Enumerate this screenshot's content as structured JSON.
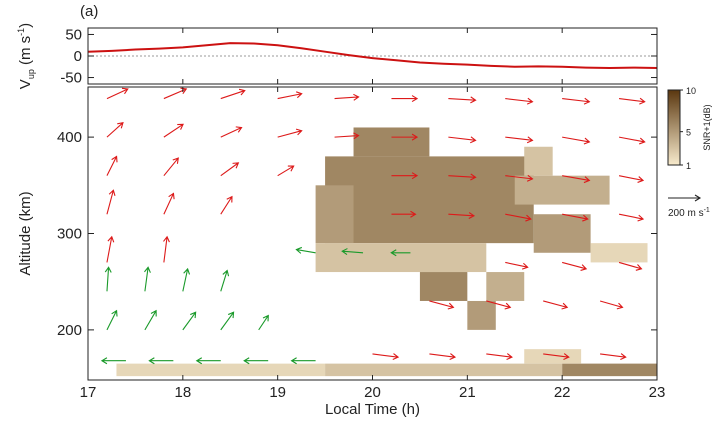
{
  "chart_data": [
    {
      "type": "line",
      "panel_label": "(a)",
      "ylabel_parts": [
        "V",
        "up",
        " (m s",
        "-1",
        ")"
      ],
      "xlim": [
        17,
        23
      ],
      "xticks": [
        17,
        18,
        19,
        20,
        21,
        22,
        23
      ],
      "ylim": [
        -65,
        65
      ],
      "yticks": [
        -50,
        0,
        50
      ],
      "series": [
        {
          "color": "#cc1111",
          "x": [
            17,
            17.25,
            17.5,
            17.75,
            18,
            18.25,
            18.5,
            18.75,
            19,
            19.25,
            19.5,
            19.75,
            20,
            20.25,
            20.5,
            20.75,
            21,
            21.25,
            21.5,
            21.75,
            22,
            22.25,
            22.5,
            22.75,
            23
          ],
          "values": [
            10,
            12,
            15,
            17,
            20,
            25,
            30,
            29,
            25,
            18,
            10,
            2,
            -5,
            -10,
            -15,
            -18,
            -20,
            -23,
            -25,
            -24,
            -25,
            -27,
            -28,
            -27,
            -28
          ]
        }
      ]
    },
    {
      "type": "quiver",
      "xlabel": "Local Time (h)",
      "ylabel": "Altitude (km)",
      "xlim": [
        17,
        23
      ],
      "xticks": [
        17,
        18,
        19,
        20,
        21,
        22,
        23
      ],
      "ylim": [
        148,
        452
      ],
      "yticks": [
        200,
        300,
        400
      ],
      "reference_arrow": {
        "value": 200,
        "label": "200 m s",
        "exp": "-1"
      },
      "colorbar": {
        "label": "SNR+1(dB)",
        "ticks": [
          1,
          5,
          10
        ],
        "colors": [
          "#f8ebcd",
          "#5a370f"
        ]
      },
      "cells": {
        "x0": [
          19.5,
          19.8,
          19.4,
          21.7,
          19.4,
          20.5,
          21.2,
          21.0,
          22.3,
          17.3,
          19.5,
          22.0,
          21.6,
          21.5,
          21.6
        ],
        "x1": [
          21.7,
          20.6,
          19.8,
          22.3,
          21.2,
          21.0,
          21.6,
          21.3,
          22.9,
          19.5,
          22.0,
          23.0,
          22.2,
          22.5,
          21.9
        ],
        "y0": [
          290,
          380,
          290,
          280,
          260,
          230,
          230,
          200,
          270,
          152,
          152,
          152,
          165,
          330,
          360
        ],
        "y1": [
          380,
          410,
          350,
          320,
          290,
          260,
          260,
          230,
          290,
          165,
          165,
          165,
          180,
          360,
          390
        ],
        "values": [
          6,
          6,
          5,
          5,
          3,
          6,
          4,
          5,
          2,
          2,
          3,
          6,
          2,
          4,
          3
        ]
      },
      "series": [
        {
          "color": "#dd1a1a",
          "x": [
            17.2,
            17.8,
            18.4,
            19.0,
            19.6,
            20.2,
            20.8,
            21.4,
            22.0,
            22.6,
            17.2,
            17.8,
            18.4,
            19.0,
            19.6,
            20.2,
            20.8,
            21.4,
            22.0,
            22.6,
            17.2,
            17.8,
            18.4,
            19.0,
            20.2,
            20.8,
            21.4,
            22.0,
            22.6,
            17.2,
            17.8,
            18.4,
            20.2,
            20.8,
            21.4,
            22.0,
            22.6,
            17.2,
            17.8,
            21.4,
            22.0,
            22.6,
            20.6,
            21.2,
            21.8,
            22.4,
            20.0,
            20.6,
            21.2,
            21.8,
            22.4
          ],
          "y": [
            440,
            440,
            440,
            440,
            440,
            440,
            440,
            440,
            440,
            440,
            400,
            400,
            400,
            400,
            400,
            400,
            400,
            400,
            400,
            400,
            360,
            360,
            360,
            360,
            360,
            360,
            360,
            360,
            360,
            320,
            320,
            320,
            320,
            320,
            320,
            320,
            320,
            270,
            270,
            270,
            270,
            270,
            230,
            230,
            230,
            230,
            175,
            175,
            175,
            175,
            175
          ],
          "u": [
            130,
            140,
            150,
            150,
            150,
            160,
            170,
            170,
            170,
            160,
            100,
            120,
            130,
            150,
            150,
            160,
            170,
            170,
            170,
            160,
            60,
            90,
            110,
            100,
            160,
            170,
            170,
            170,
            150,
            40,
            60,
            70,
            150,
            160,
            160,
            160,
            150,
            30,
            20,
            140,
            150,
            140,
            150,
            150,
            150,
            140,
            160,
            160,
            160,
            160,
            160
          ],
          "v": [
            60,
            60,
            50,
            30,
            10,
            0,
            -10,
            -20,
            -20,
            -20,
            90,
            80,
            60,
            40,
            10,
            0,
            -20,
            -20,
            -30,
            -30,
            120,
            110,
            80,
            60,
            0,
            -10,
            -20,
            -30,
            -30,
            150,
            130,
            110,
            0,
            -10,
            -30,
            -30,
            -30,
            160,
            160,
            -30,
            -40,
            -40,
            -40,
            -40,
            -40,
            -40,
            -20,
            -20,
            -20,
            -20,
            -20
          ]
        },
        {
          "color": "#1a9a2a",
          "x": [
            19.4,
            19.9,
            20.4,
            17.2,
            17.6,
            18.0,
            18.4,
            17.2,
            17.6,
            18.0,
            18.4,
            18.8,
            17.4,
            17.9,
            18.4,
            18.9,
            19.4
          ],
          "y": [
            280,
            280,
            280,
            240,
            240,
            240,
            240,
            200,
            200,
            200,
            200,
            200,
            168,
            168,
            168,
            168,
            168
          ],
          "u": [
            -120,
            -130,
            -120,
            10,
            20,
            30,
            40,
            60,
            70,
            80,
            80,
            60,
            -150,
            -150,
            -150,
            -150,
            -150
          ],
          "v": [
            20,
            10,
            0,
            150,
            150,
            140,
            130,
            120,
            120,
            110,
            110,
            90,
            0,
            0,
            0,
            0,
            0
          ]
        }
      ]
    }
  ]
}
